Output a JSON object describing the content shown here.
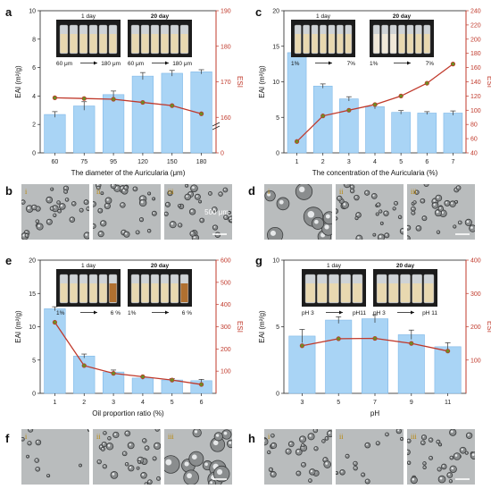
{
  "panels": {
    "a": {
      "letter": "a",
      "chart_data": {
        "type": "bar",
        "categories": [
          "60",
          "75",
          "95",
          "120",
          "150",
          "180"
        ],
        "series": [
          {
            "values": [
              2.7,
              3.3,
              4.1,
              5.4,
              5.6,
              5.7
            ],
            "errors": [
              0.2,
              0.3,
              0.25,
              0.25,
              0.2,
              0.15
            ]
          },
          {
            "values": [
              165.5,
              165.3,
              165.1,
              164.2,
              163.3,
              161.0
            ],
            "axis": "right"
          }
        ],
        "xlabel": "The diameter of the Auricularia (μm)",
        "ylabel": "EAI (m²/g)",
        "y2label": "ESI",
        "ylim": [
          0,
          10
        ],
        "y2lim": [
          150,
          190
        ],
        "y2_break": true,
        "yticks": [
          "0",
          "2",
          "4",
          "6",
          "8",
          "10"
        ],
        "y2ticks": [
          "0",
          "160",
          "170",
          "180",
          "190"
        ]
      },
      "inset": {
        "day1": "1 day",
        "day20": "20 day",
        "range1_start": "60 μm",
        "range1_end": "180 μm",
        "range2_start": "60 μm",
        "range2_end": "180 μm"
      }
    },
    "c": {
      "letter": "c",
      "chart_data": {
        "type": "bar",
        "categories": [
          "1",
          "2",
          "3",
          "4",
          "5",
          "6",
          "7"
        ],
        "series": [
          {
            "values": [
              14.1,
              9.4,
              7.6,
              6.5,
              5.7,
              5.6,
              5.6
            ],
            "errors": [
              0.3,
              0.3,
              0.3,
              0.3,
              0.25,
              0.2,
              0.3
            ]
          },
          {
            "values": [
              56,
              92,
              100,
              108,
              120,
              138,
              165
            ],
            "axis": "right"
          }
        ],
        "xlabel": "The concentration of the Auricularia (%)",
        "ylabel": "EAI (m²/g)",
        "y2label": "ESI",
        "ylim": [
          0,
          20
        ],
        "y2lim": [
          40,
          240
        ],
        "yticks": [
          "0",
          "5",
          "10",
          "15",
          "20"
        ],
        "y2ticks": [
          "40",
          "60",
          "80",
          "100",
          "120",
          "140",
          "160",
          "180",
          "200",
          "220",
          "240"
        ]
      },
      "inset": {
        "day1": "1 day",
        "day20": "20 day",
        "range1_start": "1%",
        "range1_end": "7%",
        "range2_start": "1%",
        "range2_end": "7%"
      }
    },
    "e": {
      "letter": "e",
      "chart_data": {
        "type": "bar",
        "categories": [
          "1",
          "2",
          "3",
          "4",
          "5",
          "6"
        ],
        "series": [
          {
            "values": [
              12.7,
              5.6,
              3.2,
              2.3,
              2.0,
              1.9
            ],
            "errors": [
              0.3,
              0.3,
              0.3,
              0.2,
              0.2,
              0.2
            ]
          },
          {
            "values": [
              320,
              125,
              90,
              75,
              60,
              40
            ],
            "axis": "right"
          }
        ],
        "xlabel": "Oil proportion ratio (%)",
        "ylabel": "EAI (m²/g)",
        "y2label": "ESI",
        "ylim": [
          0,
          20
        ],
        "y2lim": [
          0,
          600
        ],
        "yticks": [
          "0",
          "5",
          "10",
          "15",
          "20"
        ],
        "y2ticks": [
          "100",
          "200",
          "300",
          "400",
          "500",
          "600"
        ]
      },
      "inset": {
        "day1": "1 day",
        "day20": "20 day",
        "range1_start": "1%",
        "range1_end": "6 %",
        "range2_start": "1%",
        "range2_end": "6 %"
      }
    },
    "g": {
      "letter": "g",
      "chart_data": {
        "type": "bar",
        "categories": [
          "3",
          "5",
          "7",
          "9",
          "11"
        ],
        "series": [
          {
            "values": [
              4.3,
              5.5,
              5.6,
              4.4,
              3.5
            ],
            "errors": [
              0.5,
              0.25,
              0.3,
              0.35,
              0.3
            ]
          },
          {
            "values": [
              143,
              164,
              165,
              150,
              127
            ],
            "axis": "right"
          }
        ],
        "xlabel": "pH",
        "ylabel": "EAI (m²/g)",
        "y2label": "ESI",
        "ylim": [
          0,
          10
        ],
        "y2lim": [
          0,
          400
        ],
        "yticks": [
          "0",
          "5",
          "10"
        ],
        "y2ticks": [
          "100",
          "200",
          "300",
          "400"
        ]
      },
      "inset": {
        "day1": "1 day",
        "day20": "20 day",
        "range1_start": "pH 3",
        "range1_end": "pH11",
        "range2_start": "pH 3",
        "range2_end": "pH 11"
      }
    }
  },
  "micro_rows": {
    "b": {
      "letter": "b",
      "labels": [
        "i",
        "ii",
        "iii"
      ],
      "scale": "500 μm"
    },
    "d": {
      "letter": "d",
      "labels": [
        "i",
        "ii",
        "iii"
      ]
    },
    "f": {
      "letter": "f",
      "labels": [
        "i",
        "ii",
        "iii"
      ]
    },
    "h": {
      "letter": "h",
      "labels": [
        "i",
        "ii",
        "iii"
      ]
    }
  },
  "colors": {
    "bar": "#a9d4f5",
    "bar_stroke": "#7fb8e8",
    "line": "#c0392b",
    "marker": "#6b8e23",
    "right_axis": "#c0392b"
  }
}
